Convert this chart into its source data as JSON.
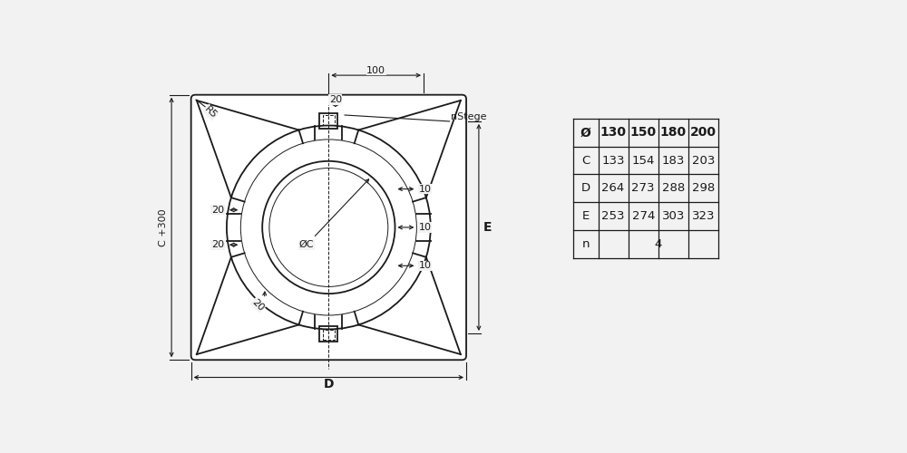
{
  "bg_color": "#f2f2f2",
  "line_color": "#1a1a1a",
  "white": "#ffffff",
  "table_data": [
    [
      "Ø",
      "130",
      "150",
      "180",
      "200"
    ],
    [
      "C",
      "133",
      "154",
      "183",
      "203"
    ],
    [
      "D",
      "264",
      "273",
      "288",
      "298"
    ],
    [
      "E",
      "253",
      "274",
      "303",
      "323"
    ],
    [
      "n",
      "4",
      "",
      "",
      ""
    ]
  ],
  "dim_100": "100",
  "dim_20_top": "20",
  "dim_20_left1": "20",
  "dim_20_left2": "20",
  "dim_20_diag": "20",
  "dim_10_right1": "10",
  "dim_10_right2": "10",
  "dim_10_right3": "10",
  "dim_C300": "C +300",
  "dim_D": "D",
  "dim_E": "E",
  "dim_R5": "R5",
  "dim_phiC": "ØC",
  "nStege": "nStege"
}
